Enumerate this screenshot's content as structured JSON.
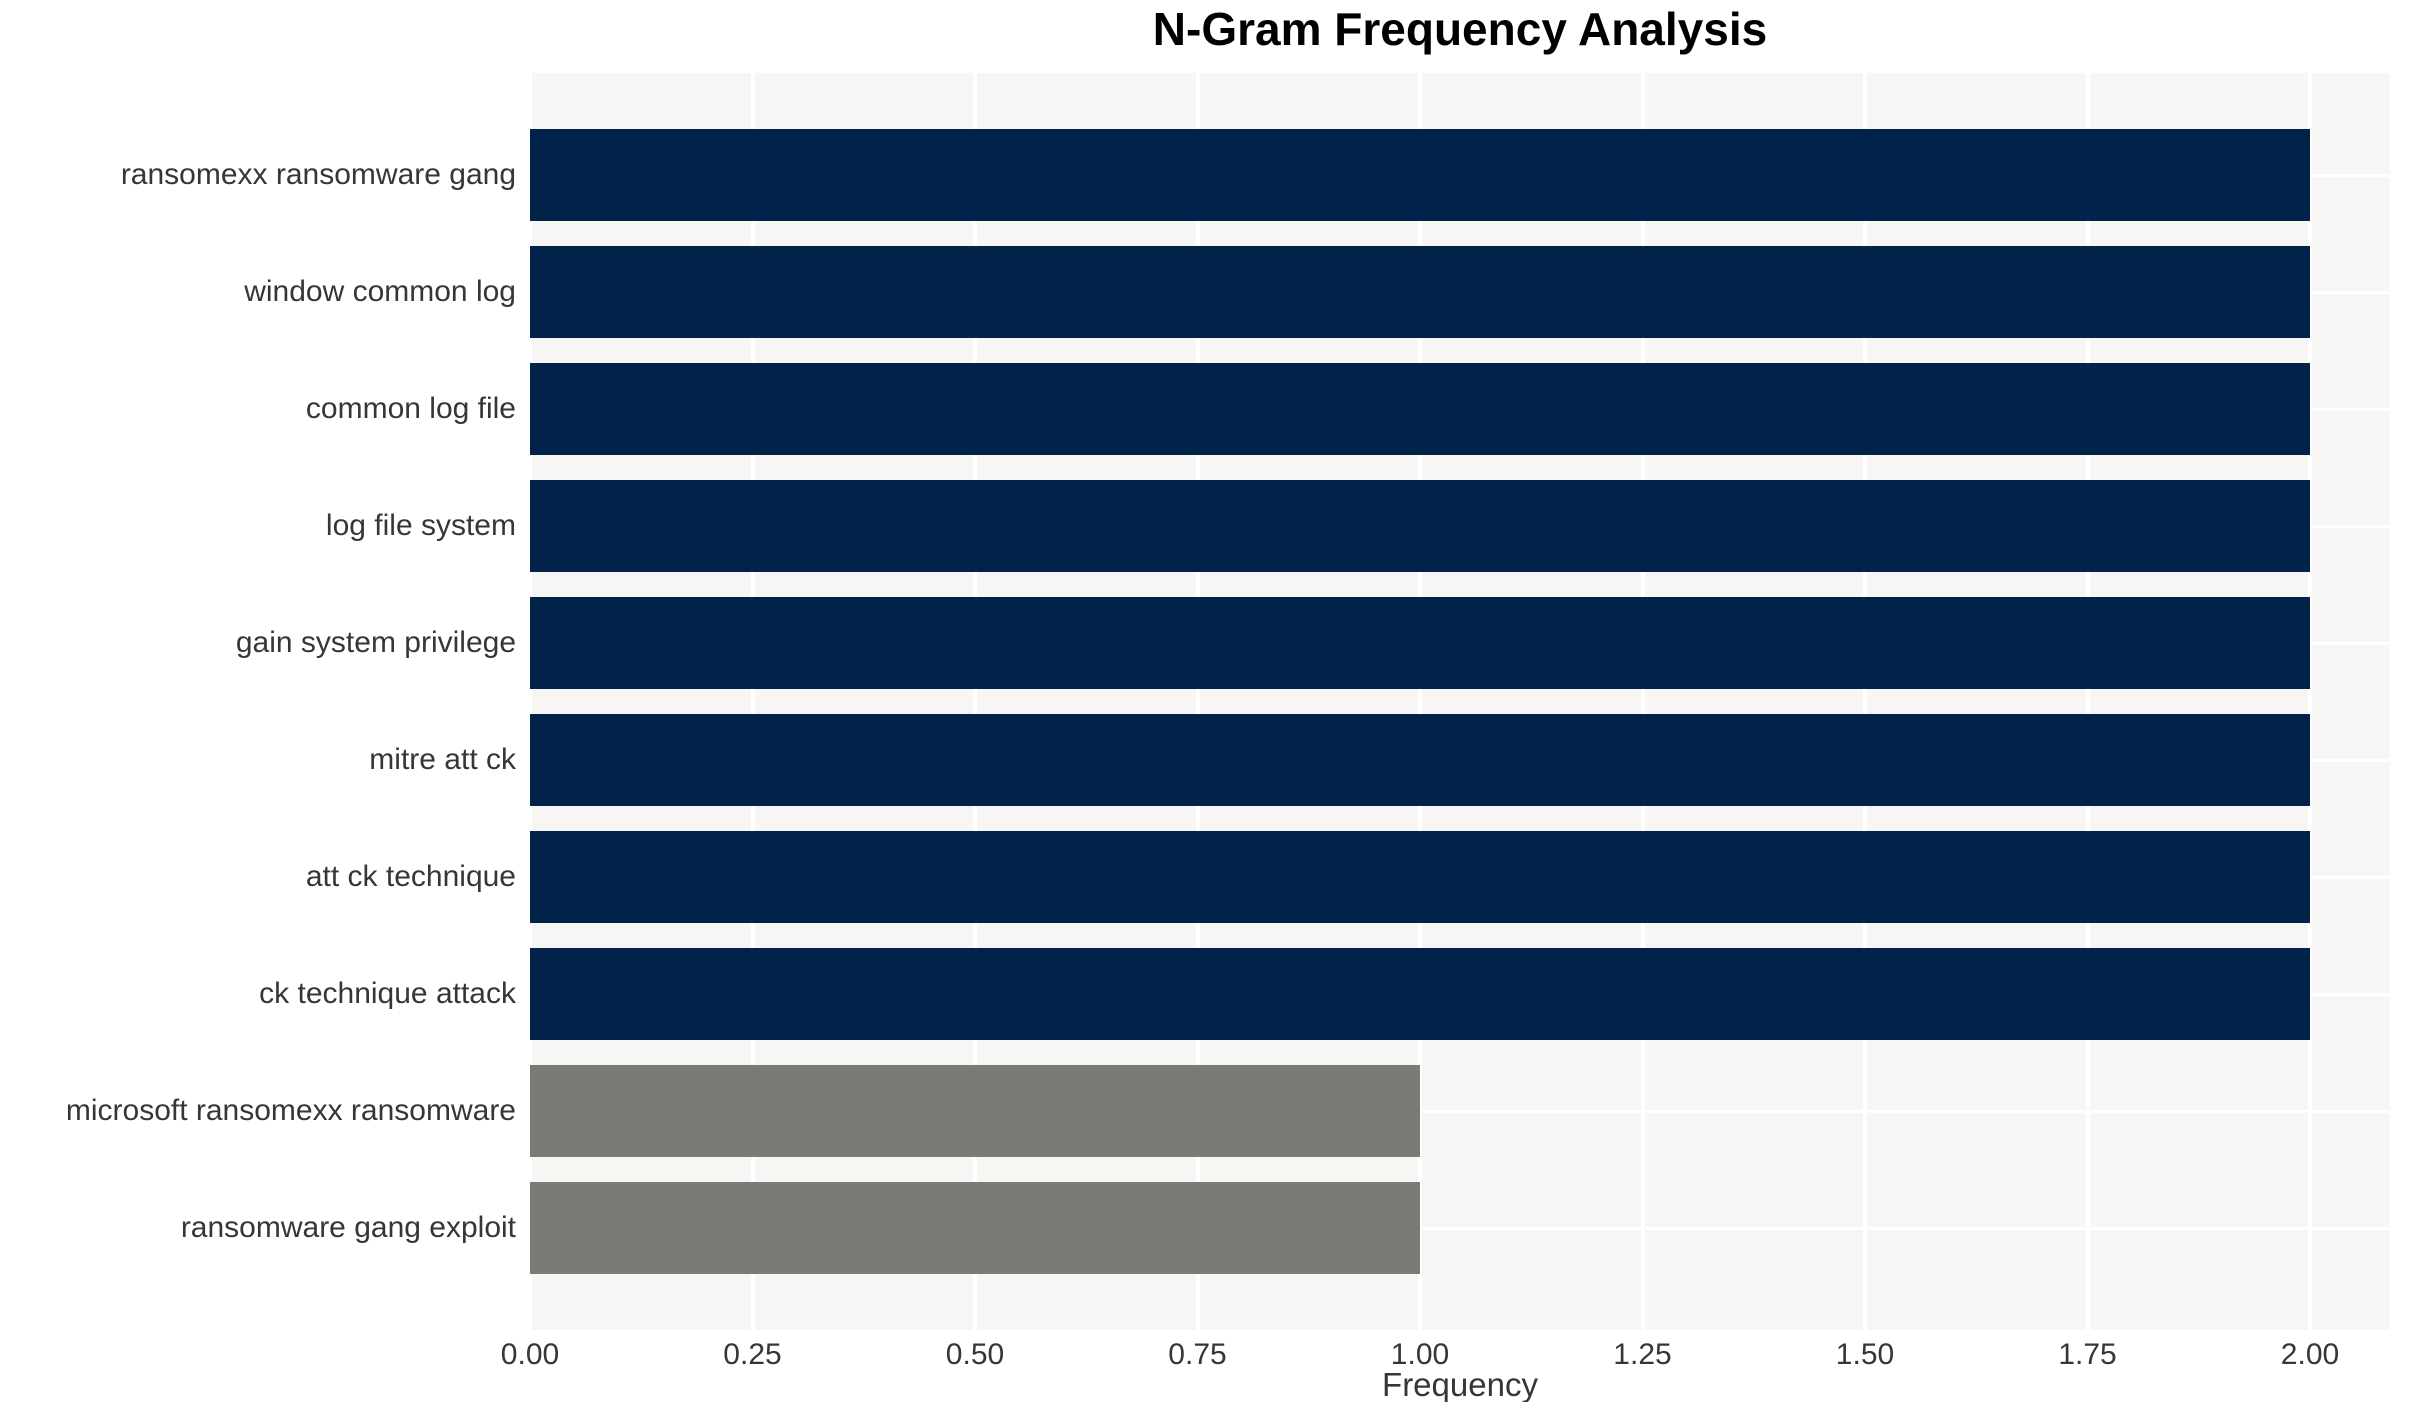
{
  "chart_data": {
    "type": "bar",
    "orientation": "horizontal",
    "title": "N-Gram Frequency Analysis",
    "xlabel": "Frequency",
    "ylabel": "",
    "categories": [
      "ransomexx ransomware gang",
      "window common log",
      "common log file",
      "log file system",
      "gain system privilege",
      "mitre att ck",
      "att ck technique",
      "ck technique attack",
      "microsoft ransomexx ransomware",
      "ransomware gang exploit"
    ],
    "values": [
      2,
      2,
      2,
      2,
      2,
      2,
      2,
      2,
      1,
      1
    ],
    "bar_colors": [
      "#022349",
      "#022349",
      "#022349",
      "#022349",
      "#022349",
      "#022349",
      "#022349",
      "#022349",
      "#7c7a75",
      "#7c7a75"
    ],
    "xlim": [
      0,
      2.09
    ],
    "xticks": [
      0,
      0.25,
      0.5,
      0.75,
      1.0,
      1.25,
      1.5,
      1.75,
      2.0
    ],
    "xtick_labels": [
      "0.00",
      "0.25",
      "0.50",
      "0.75",
      "1.00",
      "1.25",
      "1.50",
      "1.75",
      "2.00"
    ],
    "grid": true,
    "legend": false,
    "colors": {
      "plot_background": "#f7f6f5",
      "gridline": "#ffffff",
      "text": "#363636",
      "title": "#000000"
    }
  }
}
